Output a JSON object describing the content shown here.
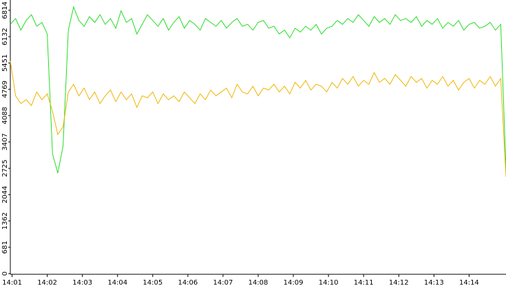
{
  "chart_data": {
    "type": "line",
    "x": [
      0.95,
      1.1,
      1.25,
      1.4,
      1.55,
      1.7,
      1.85,
      2,
      2.15,
      2.3,
      2.45,
      2.6,
      2.75,
      2.9,
      3.05,
      3.2,
      3.35,
      3.5,
      3.65,
      3.8,
      3.95,
      4.1,
      4.25,
      4.4,
      4.55,
      4.7,
      4.85,
      5,
      5.15,
      5.3,
      5.45,
      5.6,
      5.75,
      5.9,
      6.05,
      6.2,
      6.35,
      6.5,
      6.65,
      6.8,
      6.95,
      7.1,
      7.25,
      7.4,
      7.55,
      7.7,
      7.85,
      8,
      8.15,
      8.3,
      8.45,
      8.6,
      8.75,
      8.9,
      9.05,
      9.2,
      9.35,
      9.5,
      9.65,
      9.8,
      9.95,
      10.1,
      10.25,
      10.4,
      10.55,
      10.7,
      10.85,
      11,
      11.15,
      11.3,
      11.45,
      11.6,
      11.75,
      11.9,
      12.05,
      12.2,
      12.35,
      12.5,
      12.65,
      12.8,
      12.95,
      13.1,
      13.25,
      13.4,
      13.55,
      13.7,
      13.85,
      14,
      14.15,
      14.3,
      14.45,
      14.6,
      14.75,
      14.9,
      15.05
    ],
    "series": [
      {
        "color": "#22dd22",
        "values": [
          6450,
          6600,
          6300,
          6550,
          6700,
          6400,
          6500,
          6200,
          3100,
          2600,
          3300,
          6300,
          6900,
          6550,
          6400,
          6650,
          6500,
          6700,
          6450,
          6600,
          6350,
          6800,
          6500,
          6600,
          6200,
          6450,
          6700,
          6550,
          6400,
          6600,
          6300,
          6500,
          6650,
          6350,
          6550,
          6450,
          6300,
          6600,
          6500,
          6400,
          6550,
          6350,
          6500,
          6600,
          6400,
          6450,
          6300,
          6500,
          6550,
          6350,
          6400,
          6200,
          6300,
          6100,
          6350,
          6250,
          6400,
          6300,
          6450,
          6200,
          6350,
          6400,
          6550,
          6450,
          6600,
          6500,
          6700,
          6550,
          6400,
          6650,
          6500,
          6600,
          6450,
          6700,
          6550,
          6600,
          6500,
          6650,
          6400,
          6550,
          6450,
          6600,
          6350,
          6500,
          6400,
          6550,
          6300,
          6450,
          6500,
          6350,
          6400,
          6500,
          6300,
          6450,
          2700
        ]
      },
      {
        "color": "#f0b400",
        "values": [
          5500,
          4600,
          4400,
          4500,
          4350,
          4700,
          4500,
          4650,
          4200,
          3600,
          3800,
          4700,
          4900,
          4600,
          4800,
          4500,
          4700,
          4400,
          4600,
          4750,
          4450,
          4700,
          4500,
          4650,
          4300,
          4600,
          4550,
          4700,
          4400,
          4650,
          4500,
          4600,
          4450,
          4700,
          4550,
          4400,
          4650,
          4500,
          4750,
          4600,
          4700,
          4800,
          4550,
          4900,
          4700,
          4650,
          4850,
          4600,
          4800,
          4750,
          4900,
          4700,
          4850,
          4650,
          4950,
          4800,
          5000,
          4750,
          4900,
          4850,
          4700,
          4950,
          4800,
          5050,
          4900,
          5100,
          4850,
          5000,
          4900,
          5200,
          4950,
          5050,
          4900,
          5150,
          5000,
          4850,
          5100,
          4950,
          5050,
          4800,
          5000,
          4900,
          5100,
          4850,
          5000,
          4750,
          4950,
          5050,
          4800,
          5000,
          4900,
          5100,
          4850,
          5050,
          2500
        ]
      }
    ],
    "xlim": [
      0.95,
      15.05
    ],
    "xticks": [
      {
        "value": 1,
        "label": "14:01"
      },
      {
        "value": 2,
        "label": "14:02"
      },
      {
        "value": 3,
        "label": "14:03"
      },
      {
        "value": 4,
        "label": "14:04"
      },
      {
        "value": 5,
        "label": "14:05"
      },
      {
        "value": 6,
        "label": "14:06"
      },
      {
        "value": 7,
        "label": "14:07"
      },
      {
        "value": 8,
        "label": "14:08"
      },
      {
        "value": 9,
        "label": "14:09"
      },
      {
        "value": 10,
        "label": "14:10"
      },
      {
        "value": 11,
        "label": "14:11"
      },
      {
        "value": 12,
        "label": "14:12"
      },
      {
        "value": 13,
        "label": "14:13"
      },
      {
        "value": 14,
        "label": "14:14"
      }
    ],
    "ylim": [
      0,
      7080
    ],
    "yticks": [
      0,
      681,
      1362,
      2044,
      2725,
      3407,
      4088,
      4769,
      5451,
      6132,
      6814
    ]
  }
}
